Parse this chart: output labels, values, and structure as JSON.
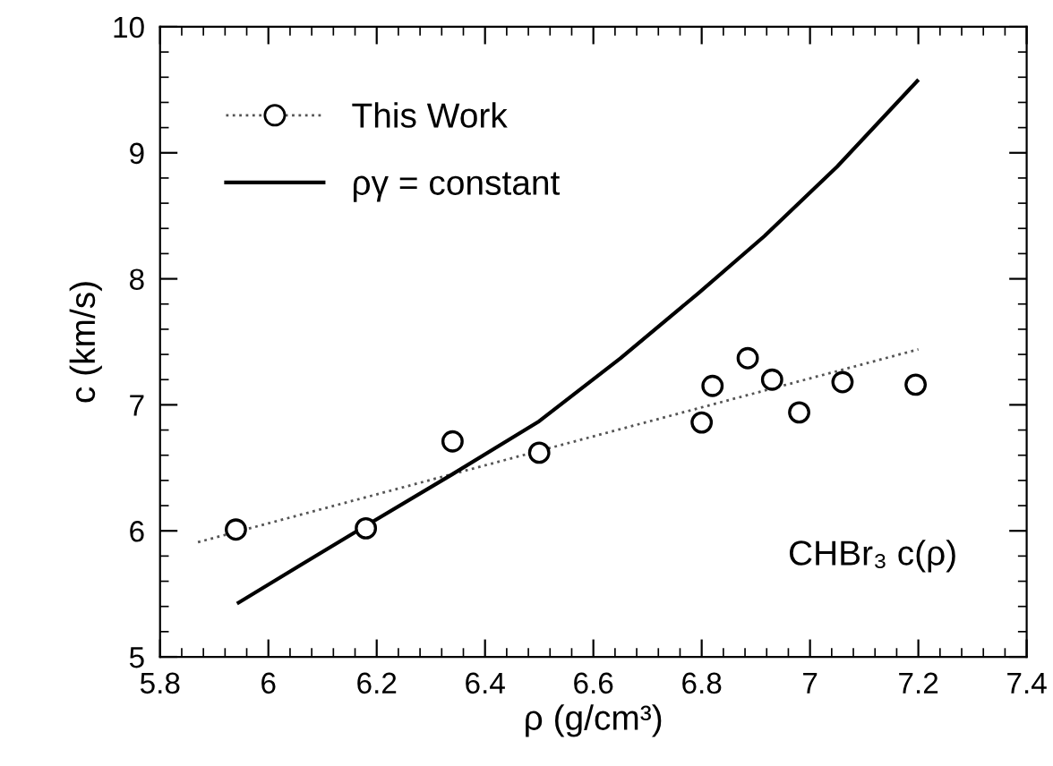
{
  "chart_data": {
    "type": "scatter",
    "xlabel": "ρ (g/cm³)",
    "ylabel": "c (km/s)",
    "xlim": [
      5.8,
      7.4
    ],
    "xticks": [
      5.8,
      {
        "value": 6,
        "label": "6"
      },
      6.2,
      6.4,
      6.6,
      6.8,
      {
        "value": 7,
        "label": "7"
      },
      7.2,
      7.4
    ],
    "ylim": [
      5,
      10
    ],
    "yticks": [
      5,
      6,
      7,
      8,
      9,
      10
    ],
    "grid": false,
    "legend": "top left",
    "annotations": [
      "CHBr₃ c(ρ)"
    ],
    "series": [
      {
        "name": "This Work",
        "marker": "circle",
        "color": "#000000",
        "x": [
          5.94,
          6.18,
          6.34,
          6.5,
          6.8,
          6.82,
          6.885,
          6.93,
          6.98,
          7.06,
          7.195
        ],
        "values": [
          6.01,
          6.02,
          6.71,
          6.62,
          6.86,
          7.15,
          7.37,
          7.2,
          6.94,
          7.18,
          7.16
        ]
      },
      {
        "type": "line",
        "line_style": "dotted",
        "color": "#555555",
        "x": [
          5.87,
          7.2
        ],
        "values": [
          5.91,
          7.44
        ]
      },
      {
        "name": "ργ = constant",
        "type": "line",
        "line_style": "solid",
        "color": "#000000",
        "x": [
          5.945,
          6.06,
          6.18,
          6.34,
          6.5,
          6.65,
          6.795,
          6.916,
          7.05,
          7.198
        ],
        "values": [
          5.43,
          5.73,
          6.04,
          6.45,
          6.87,
          7.37,
          7.89,
          8.34,
          8.89,
          9.57
        ]
      }
    ]
  }
}
